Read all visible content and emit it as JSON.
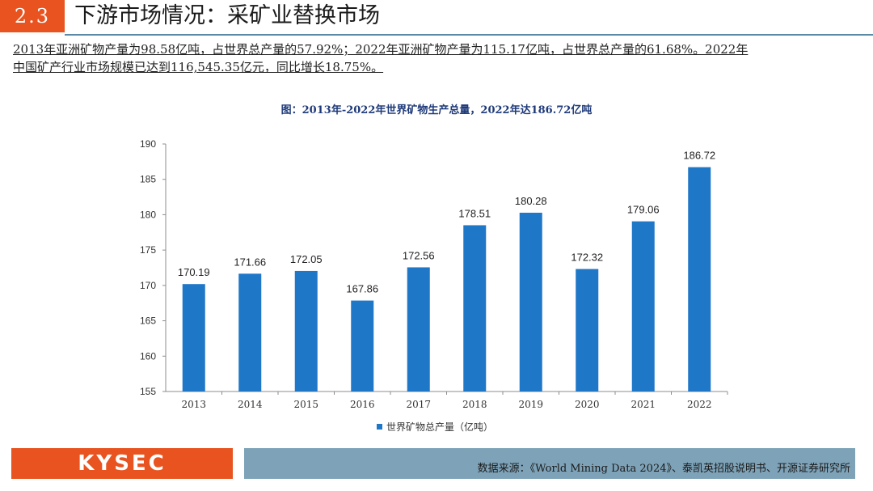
{
  "header": {
    "section_number": "2.3",
    "title": "下游市场情况：采矿业替换市场"
  },
  "intro": {
    "line1": "2013年亚洲矿物产量为98.58亿吨，占世界总产量的57.92%；2022年亚洲矿物产量为115.17亿吨，占世界总产量的61.68%。2022年",
    "line2": "中国矿产行业市场规模已达到116,545.35亿元，同比增长18.75%。"
  },
  "chart_data": {
    "type": "bar",
    "title": "图：2013年-2022年世界矿物生产总量，2022年达186.72亿吨",
    "categories": [
      "2013",
      "2014",
      "2015",
      "2016",
      "2017",
      "2018",
      "2019",
      "2020",
      "2021",
      "2022"
    ],
    "series": [
      {
        "name": "世界矿物总产量（亿吨）",
        "values": [
          170.19,
          171.66,
          172.05,
          167.86,
          172.56,
          178.51,
          180.28,
          172.32,
          179.06,
          186.72
        ],
        "labels": [
          "170.19",
          "171.66",
          "172.05",
          "167.86",
          "172.56",
          "178.51",
          "180.28",
          "172.32",
          "179.06",
          "186.72"
        ]
      }
    ],
    "yticks": [
      "155",
      "160",
      "165",
      "170",
      "175",
      "180",
      "185",
      "190"
    ],
    "ylim": [
      155,
      190
    ],
    "legend_position": "bottom-center",
    "bar_color": "#1f77c8"
  },
  "footer": {
    "logo": "KYSEC",
    "source": "数据来源：《World Mining Data 2024》、泰凯英招股说明书、开源证券研究所"
  }
}
